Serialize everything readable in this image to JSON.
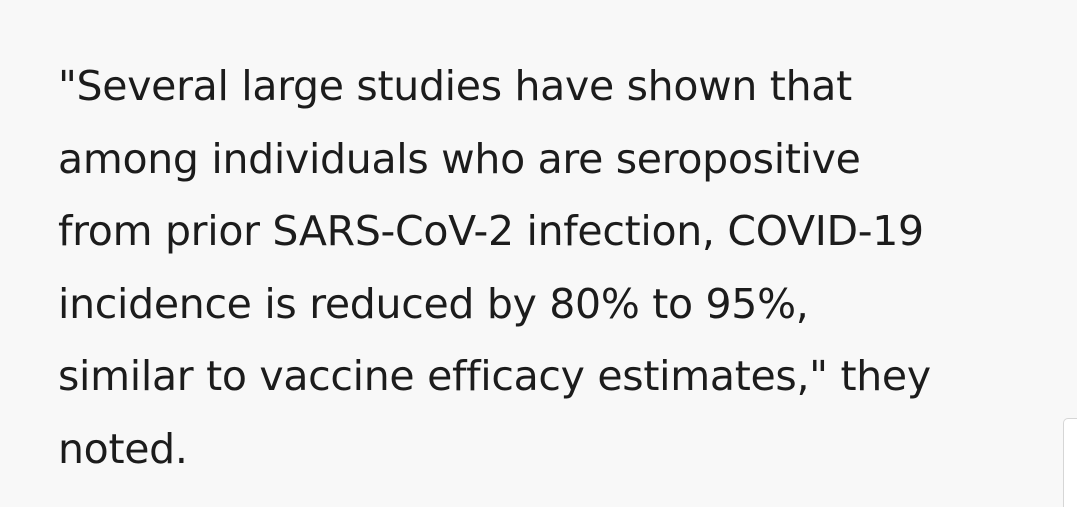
{
  "article": {
    "quote_lines": [
      "\"Several large studies have shown that",
      "among individuals who are seropositive",
      "from prior SARS-CoV-2 infection, COVID-19",
      "incidence is reduced by 80% to 95%,",
      "similar to vaccine efficacy estimates,\" they",
      "noted."
    ]
  },
  "colors": {
    "background": "#f8f8f8",
    "text": "#1c1c1c"
  }
}
